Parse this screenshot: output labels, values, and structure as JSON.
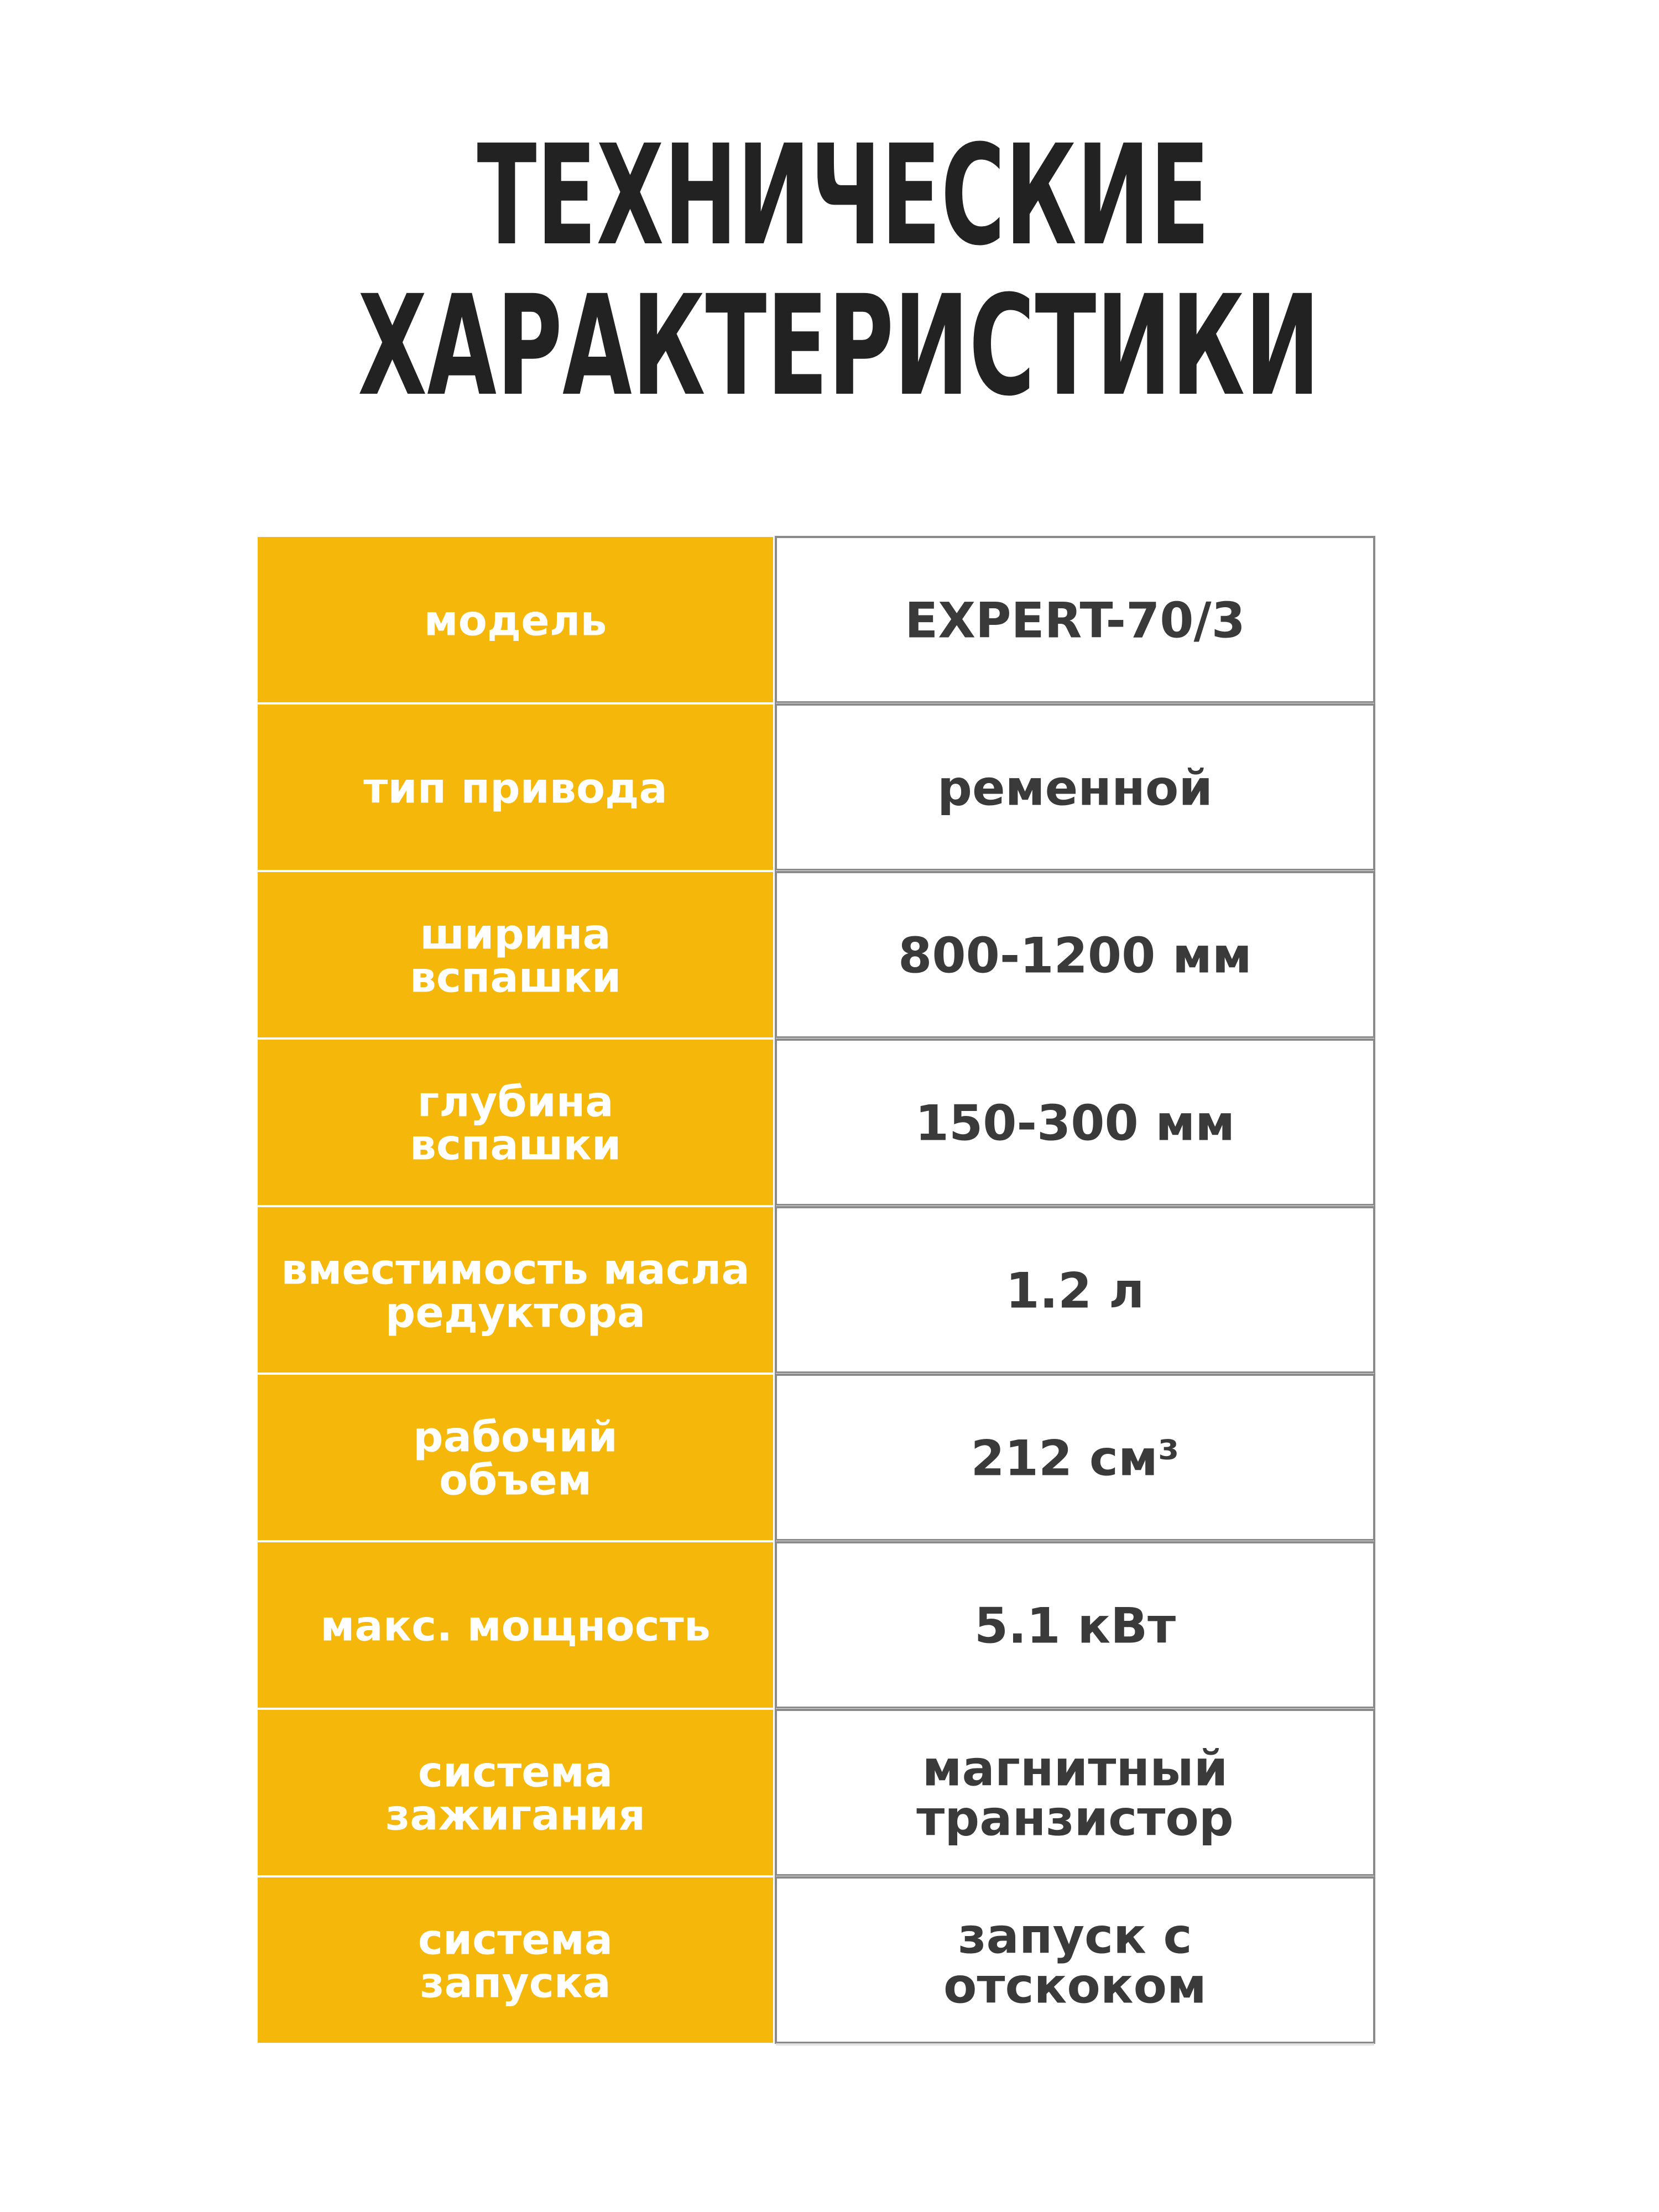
{
  "header": {
    "title": [
      "ТЕХНИЧЕСКИЕ",
      "ХАРАКТЕРИСТИКИ"
    ]
  },
  "table": {
    "rows": [
      [
        [
          "модель"
        ],
        [
          "EXPERT-70/3"
        ]
      ],
      [
        [
          "тип привода"
        ],
        [
          "ременной"
        ]
      ],
      [
        [
          "ширина",
          "вспашки"
        ],
        [
          "800-1200 мм"
        ]
      ],
      [
        [
          "глубина",
          "вспашки"
        ],
        [
          "150-300 мм"
        ]
      ],
      [
        [
          "вместимость масла",
          "редуктора"
        ],
        [
          "1.2 л"
        ]
      ],
      [
        [
          "рабочий",
          "объем"
        ],
        [
          "212 см³"
        ]
      ],
      [
        [
          "макс. мощность"
        ],
        [
          "5.1 кВт"
        ]
      ],
      [
        [
          "система",
          "зажигания"
        ],
        [
          "магнитный",
          "транзистор"
        ]
      ],
      [
        [
          "система",
          "запуска"
        ],
        [
          "запуск с",
          "отскоком"
        ]
      ]
    ]
  }
}
